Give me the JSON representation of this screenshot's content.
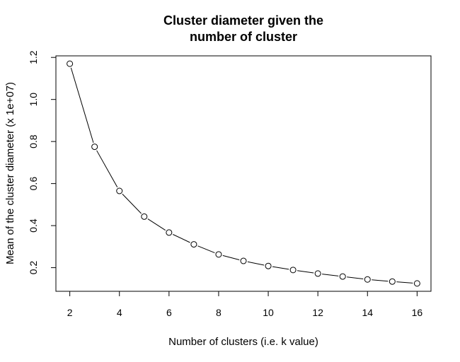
{
  "chart_data": {
    "type": "line",
    "title": [
      "Cluster diameter given the",
      "number of cluster"
    ],
    "xlabel": "Number of clusters (i.e. k value)",
    "ylabel": "Mean of the cluster diameter (x 1e+07)",
    "x": [
      2,
      3,
      4,
      5,
      6,
      7,
      8,
      9,
      10,
      11,
      12,
      13,
      14,
      15,
      16
    ],
    "series": [
      {
        "values": [
          1.17,
          0.775,
          0.565,
          0.443,
          0.367,
          0.311,
          0.263,
          0.232,
          0.208,
          0.189,
          0.172,
          0.158,
          0.144,
          0.134,
          0.125
        ]
      }
    ],
    "xlim": [
      1.44,
      16.56
    ],
    "ylim": [
      0.0876,
      1.2074
    ],
    "xticks": [
      2,
      4,
      6,
      8,
      10,
      12,
      14,
      16
    ],
    "yticks": [
      0.2,
      0.4,
      0.6,
      0.8,
      1.0,
      1.2
    ],
    "ytick_labels": [
      "0.2",
      "0.4",
      "0.6",
      "0.8",
      "1.0",
      "1.2"
    ],
    "markers": "open-circle",
    "line_color": "#000000",
    "grid": false,
    "legend": "none"
  }
}
